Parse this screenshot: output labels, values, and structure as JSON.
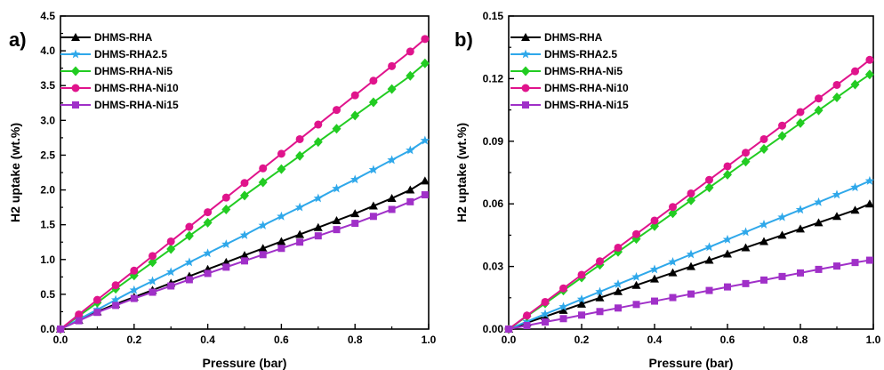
{
  "chart_data": [
    {
      "type": "line",
      "panel_label": "a)",
      "xlabel": "Pressure (bar)",
      "ylabel": "H2 uptake (wt.%)",
      "xlim": [
        0.0,
        1.0
      ],
      "ylim": [
        0.0,
        4.5
      ],
      "xticks": [
        "0.0",
        "0.2",
        "0.4",
        "0.6",
        "0.8",
        "1.0"
      ],
      "yticks": [
        "0.0",
        "0.5",
        "1.0",
        "1.5",
        "2.0",
        "2.5",
        "3.0",
        "3.5",
        "4.0",
        "4.5"
      ],
      "legend_position": "top-left",
      "x": [
        0.0,
        0.05,
        0.1,
        0.15,
        0.2,
        0.25,
        0.3,
        0.35,
        0.4,
        0.45,
        0.5,
        0.55,
        0.6,
        0.65,
        0.7,
        0.75,
        0.8,
        0.85,
        0.9,
        0.95,
        0.99
      ],
      "series": [
        {
          "name": "DHMS-RHA",
          "color": "#000000",
          "marker": "triangle",
          "values": [
            0.0,
            0.13,
            0.25,
            0.36,
            0.46,
            0.56,
            0.66,
            0.76,
            0.86,
            0.96,
            1.06,
            1.16,
            1.26,
            1.36,
            1.46,
            1.56,
            1.66,
            1.77,
            1.88,
            2.0,
            2.13
          ]
        },
        {
          "name": "DHMS-RHA2.5",
          "color": "#2fa8ea",
          "marker": "star",
          "values": [
            0.0,
            0.14,
            0.28,
            0.42,
            0.56,
            0.69,
            0.82,
            0.96,
            1.09,
            1.22,
            1.35,
            1.49,
            1.62,
            1.75,
            1.88,
            2.02,
            2.15,
            2.29,
            2.43,
            2.57,
            2.71
          ]
        },
        {
          "name": "DHMS-RHA-Ni5",
          "color": "#22cc22",
          "marker": "diamond",
          "values": [
            0.0,
            0.19,
            0.38,
            0.58,
            0.77,
            0.96,
            1.15,
            1.34,
            1.53,
            1.72,
            1.92,
            2.11,
            2.3,
            2.49,
            2.69,
            2.88,
            3.07,
            3.26,
            3.45,
            3.64,
            3.82
          ]
        },
        {
          "name": "DHMS-RHA-Ni10",
          "color": "#e0148c",
          "marker": "circle",
          "values": [
            0.0,
            0.21,
            0.42,
            0.63,
            0.84,
            1.05,
            1.26,
            1.47,
            1.68,
            1.89,
            2.1,
            2.31,
            2.52,
            2.73,
            2.94,
            3.15,
            3.36,
            3.57,
            3.78,
            3.99,
            4.17
          ]
        },
        {
          "name": "DHMS-RHA-Ni15",
          "color": "#a030c8",
          "marker": "square",
          "values": [
            0.0,
            0.12,
            0.24,
            0.34,
            0.44,
            0.53,
            0.62,
            0.71,
            0.8,
            0.89,
            0.98,
            1.07,
            1.16,
            1.25,
            1.34,
            1.43,
            1.52,
            1.62,
            1.72,
            1.83,
            1.93
          ]
        }
      ]
    },
    {
      "type": "line",
      "panel_label": "b)",
      "xlabel": "Pressure (bar)",
      "ylabel": "H2 uptake (wt.%)",
      "xlim": [
        0.0,
        1.0
      ],
      "ylim": [
        0.0,
        0.15
      ],
      "xticks": [
        "0.0",
        "0.2",
        "0.4",
        "0.6",
        "0.8",
        "1.0"
      ],
      "yticks": [
        "0.00",
        "0.03",
        "0.06",
        "0.09",
        "0.12",
        "0.15"
      ],
      "legend_position": "top-left",
      "x": [
        0.0,
        0.05,
        0.1,
        0.15,
        0.2,
        0.25,
        0.3,
        0.35,
        0.4,
        0.45,
        0.5,
        0.55,
        0.6,
        0.65,
        0.7,
        0.75,
        0.8,
        0.85,
        0.9,
        0.95,
        0.99
      ],
      "series": [
        {
          "name": "DHMS-RHA",
          "color": "#000000",
          "marker": "triangle",
          "values": [
            0.0,
            0.003,
            0.006,
            0.009,
            0.012,
            0.015,
            0.018,
            0.021,
            0.024,
            0.027,
            0.03,
            0.033,
            0.036,
            0.039,
            0.042,
            0.045,
            0.048,
            0.051,
            0.054,
            0.057,
            0.06
          ]
        },
        {
          "name": "DHMS-RHA2.5",
          "color": "#2fa8ea",
          "marker": "star",
          "values": [
            0.0,
            0.0036,
            0.0072,
            0.0107,
            0.0143,
            0.0179,
            0.0215,
            0.025,
            0.0286,
            0.0322,
            0.0358,
            0.0393,
            0.0429,
            0.0465,
            0.0501,
            0.0536,
            0.0572,
            0.0608,
            0.0644,
            0.0679,
            0.071
          ]
        },
        {
          "name": "DHMS-RHA-Ni5",
          "color": "#22cc22",
          "marker": "diamond",
          "values": [
            0.0,
            0.0062,
            0.0123,
            0.0185,
            0.0247,
            0.0308,
            0.037,
            0.0432,
            0.0493,
            0.0555,
            0.0617,
            0.0678,
            0.074,
            0.0802,
            0.0863,
            0.0925,
            0.0987,
            0.1048,
            0.111,
            0.1172,
            0.122
          ]
        },
        {
          "name": "DHMS-RHA-Ni10",
          "color": "#e0148c",
          "marker": "circle",
          "values": [
            0.0,
            0.0065,
            0.013,
            0.0195,
            0.026,
            0.0325,
            0.039,
            0.0455,
            0.052,
            0.0585,
            0.065,
            0.0715,
            0.078,
            0.0845,
            0.091,
            0.0975,
            0.104,
            0.1105,
            0.117,
            0.1235,
            0.129
          ]
        },
        {
          "name": "DHMS-RHA-Ni15",
          "color": "#a030c8",
          "marker": "square",
          "values": [
            0.0,
            0.0017,
            0.0034,
            0.005,
            0.0067,
            0.0084,
            0.0101,
            0.0118,
            0.0134,
            0.0151,
            0.0168,
            0.0185,
            0.0202,
            0.0218,
            0.0235,
            0.0252,
            0.0269,
            0.0286,
            0.0302,
            0.0319,
            0.033
          ]
        }
      ]
    }
  ]
}
